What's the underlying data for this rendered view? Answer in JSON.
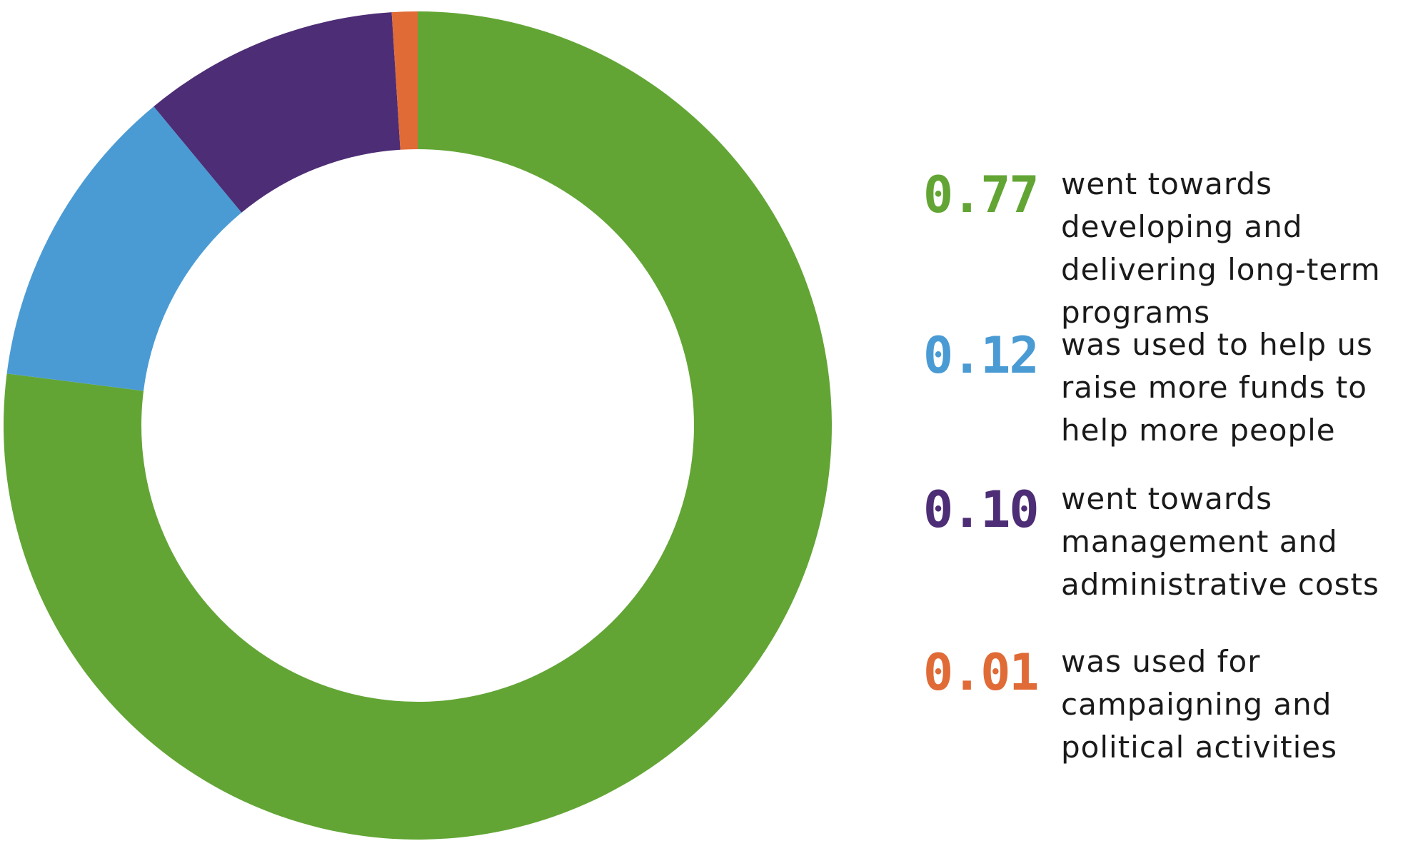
{
  "chart_data": {
    "type": "donut",
    "title": "",
    "slices": [
      {
        "value": 0.77,
        "label": "0.77",
        "description": "went towards developing and delivering long-term programs",
        "color": "#62a534"
      },
      {
        "value": 0.12,
        "label": "0.12",
        "description": "was used to help us raise more funds to help more people",
        "color": "#4a9bd4"
      },
      {
        "value": 0.1,
        "label": "0.10",
        "description": "went towards management and administrative costs",
        "color": "#4d2d75"
      },
      {
        "value": 0.01,
        "label": "0.01",
        "description": "was used for campaigning and political activities",
        "color": "#e06b37"
      }
    ],
    "legend_position": "right"
  }
}
